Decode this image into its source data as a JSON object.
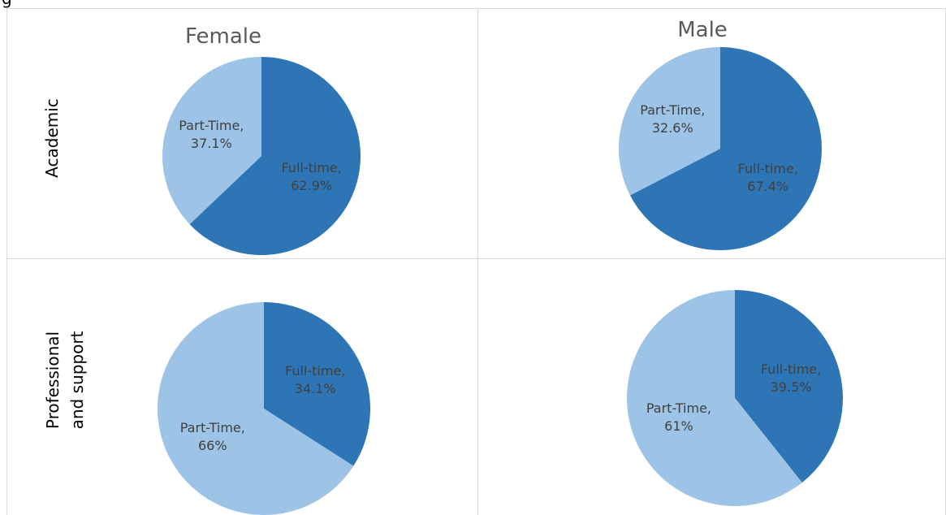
{
  "caption_fragment": "g",
  "row_labels": [
    "Academic",
    "Professional and support"
  ],
  "chart_data": [
    {
      "type": "pie",
      "title": "Female",
      "values": [
        62.9,
        37.1
      ],
      "value_labels": [
        "Full-time, 62.9%",
        "Part-Time, 37.1%"
      ],
      "colors": [
        "#2e75b6",
        "#9dc3e6"
      ]
    },
    {
      "type": "pie",
      "title": "Male",
      "values": [
        67.4,
        32.6
      ],
      "value_labels": [
        "Full-time, 67.4%",
        "Part-Time, 32.6%"
      ],
      "colors": [
        "#2e75b6",
        "#9dc3e6"
      ]
    },
    {
      "type": "pie",
      "values": [
        34.1,
        66
      ],
      "value_labels": [
        "Full-time, 34.1%",
        "Part-Time, 66%"
      ],
      "colors": [
        "#2e75b6",
        "#9dc3e6"
      ]
    },
    {
      "type": "pie",
      "values": [
        39.5,
        61
      ],
      "value_labels": [
        "Full-time, 39.5%",
        "Part-Time, 61%"
      ],
      "colors": [
        "#2e75b6",
        "#9dc3e6"
      ]
    }
  ]
}
